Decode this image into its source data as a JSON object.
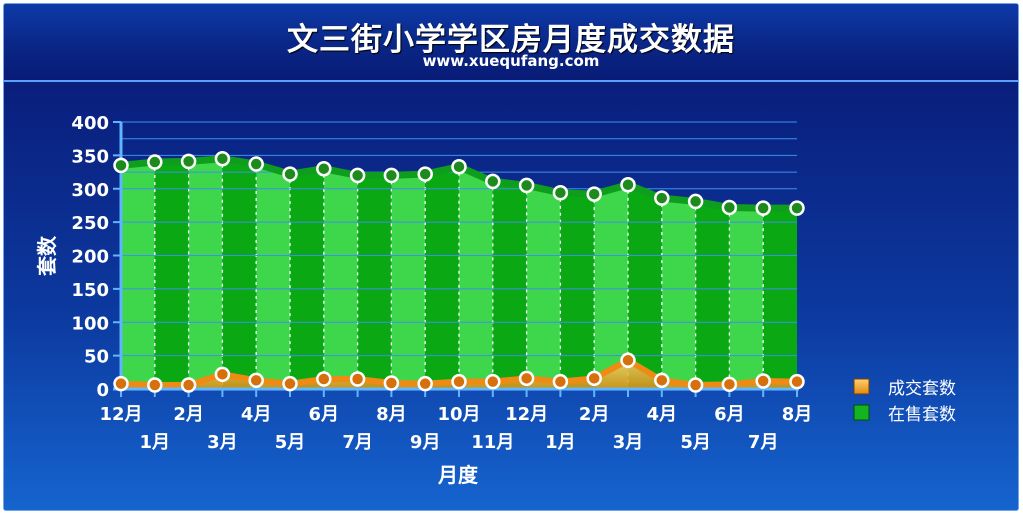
{
  "header": {
    "title": "文三街小学学区房月度成交数据",
    "subtitle": "www.xuequfang.com"
  },
  "colors": {
    "sale_line": "#0f9d1e",
    "sale_fill_light": "#3ed64a",
    "sale_fill_dark": "#0aa813",
    "deal_line": "#ef8a14",
    "deal_fill": "#ffc040",
    "grid": "#3d8ff0"
  },
  "chart_data": {
    "type": "area",
    "xlabel": "月度",
    "ylabel": "套数",
    "ylim": [
      0,
      400
    ],
    "yticks": [
      "0",
      "50",
      "100",
      "150",
      "200",
      "250",
      "300",
      "350",
      "400"
    ],
    "categories": [
      "12月",
      "1月",
      "2月",
      "3月",
      "4月",
      "5月",
      "6月",
      "7月",
      "8月",
      "9月",
      "10月",
      "11月",
      "12月",
      "1月",
      "2月",
      "3月",
      "4月",
      "5月",
      "6月",
      "7月",
      "8月"
    ],
    "legend_position": "right",
    "series": [
      {
        "name": "成交套数",
        "values": [
          8,
          6,
          6,
          22,
          13,
          8,
          15,
          15,
          9,
          8,
          11,
          11,
          16,
          11,
          16,
          43,
          13,
          6,
          7,
          12,
          11
        ]
      },
      {
        "name": "在售套数",
        "values": [
          335,
          340,
          341,
          345,
          337,
          322,
          330,
          320,
          320,
          322,
          333,
          311,
          305,
          294,
          292,
          306,
          286,
          281,
          272,
          271,
          271
        ]
      }
    ]
  }
}
